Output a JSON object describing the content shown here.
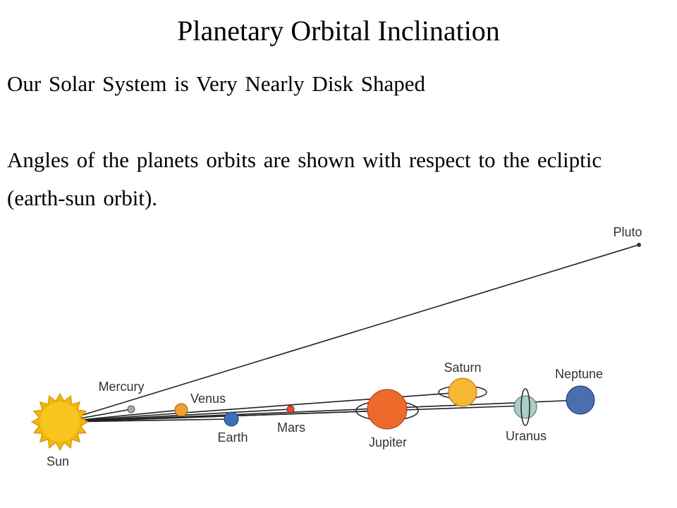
{
  "header": {
    "title": "Planetary Orbital Inclination"
  },
  "paragraphs": [
    "Our Solar System is Very Nearly Disk Shaped",
    "Angles of the planets orbits are shown with respect to the ecliptic (earth-sun orbit)."
  ],
  "bodies": [
    {
      "label": "Sun"
    },
    {
      "label": "Mercury"
    },
    {
      "label": "Venus"
    },
    {
      "label": "Earth"
    },
    {
      "label": "Mars"
    },
    {
      "label": "Jupiter"
    },
    {
      "label": "Saturn"
    },
    {
      "label": "Uranus"
    },
    {
      "label": "Neptune"
    },
    {
      "label": "Pluto"
    }
  ]
}
